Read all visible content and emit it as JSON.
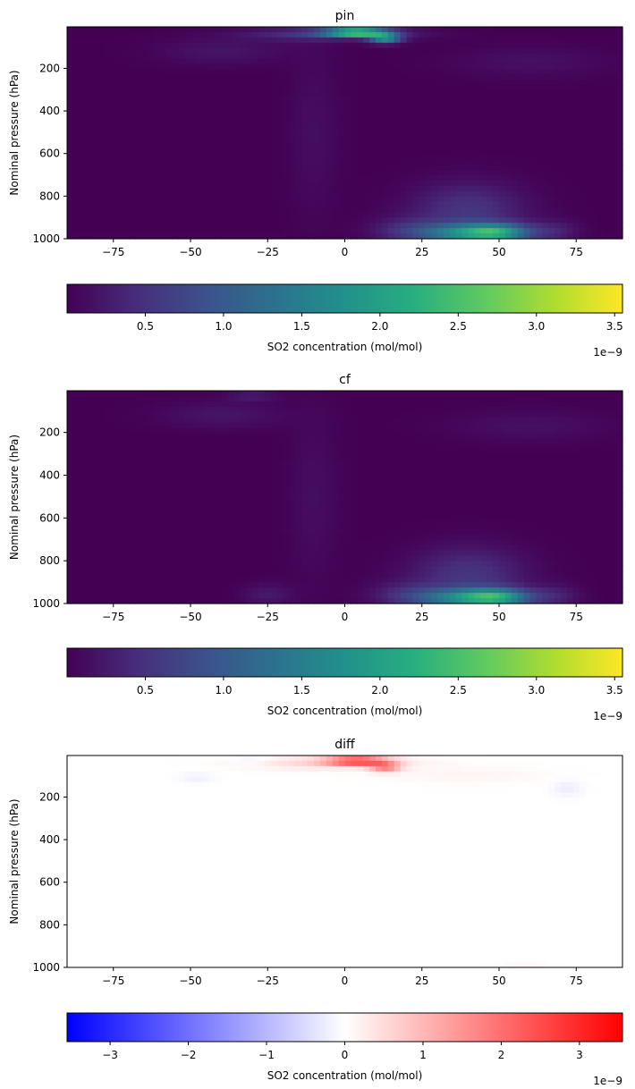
{
  "chart_data": [
    {
      "type": "heatmap",
      "title": "pin",
      "xlabel": "",
      "ylabel": "Nominal pressure (hPa)",
      "xlim": [
        -90,
        90
      ],
      "ylim": [
        1000,
        5
      ],
      "y_inverted": true,
      "xticks": [
        -75,
        -50,
        -25,
        0,
        25,
        50,
        75
      ],
      "yticks": [
        200,
        400,
        600,
        800,
        1000
      ],
      "colormap": "viridis",
      "colorbar": {
        "label": "SO2 concentration (mol/mol)",
        "range": [
          0.0,
          3.55
        ],
        "ticks": [
          "0.5",
          "1.0",
          "1.5",
          "2.0",
          "2.5",
          "3.0",
          "3.5"
        ],
        "tick_values": [
          0.5,
          1.0,
          1.5,
          2.0,
          2.5,
          3.0,
          3.5
        ],
        "offset_text": "1e−9"
      },
      "features": [
        {
          "lat": 4,
          "pressure": 30,
          "value": 3.5,
          "lat_width": 10,
          "p_width": 15
        },
        {
          "lat": 13,
          "pressure": 60,
          "value": 1.7,
          "lat_width": 5,
          "p_width": 22
        },
        {
          "lat": -5,
          "pressure": 40,
          "value": 0.6,
          "lat_width": 25,
          "p_width": 30
        },
        {
          "lat": 40,
          "pressure": 975,
          "value": 1.5,
          "lat_width": 16,
          "p_width": 45
        },
        {
          "lat": 50,
          "pressure": 970,
          "value": 1.2,
          "lat_width": 10,
          "p_width": 40
        },
        {
          "lat": 40,
          "pressure": 870,
          "value": 0.55,
          "lat_width": 18,
          "p_width": 130
        },
        {
          "lat": 20,
          "pressure": 960,
          "value": 0.35,
          "lat_width": 12,
          "p_width": 60
        },
        {
          "lat": 68,
          "pressure": 965,
          "value": 0.3,
          "lat_width": 8,
          "p_width": 50
        },
        {
          "lat": -40,
          "pressure": 120,
          "value": 0.2,
          "lat_width": 20,
          "p_width": 60
        },
        {
          "lat": 60,
          "pressure": 170,
          "value": 0.15,
          "lat_width": 25,
          "p_width": 70
        },
        {
          "lat": -10,
          "pressure": 500,
          "value": 0.12,
          "lat_width": 8,
          "p_width": 400
        }
      ]
    },
    {
      "type": "heatmap",
      "title": "cf",
      "xlabel": "",
      "ylabel": "Nominal pressure (hPa)",
      "xlim": [
        -90,
        90
      ],
      "ylim": [
        1000,
        5
      ],
      "y_inverted": true,
      "xticks": [
        -75,
        -50,
        -25,
        0,
        25,
        50,
        75
      ],
      "yticks": [
        200,
        400,
        600,
        800,
        1000
      ],
      "colormap": "viridis",
      "colorbar": {
        "label": "SO2 concentration (mol/mol)",
        "range": [
          0.0,
          3.55
        ],
        "ticks": [
          "0.5",
          "1.0",
          "1.5",
          "2.0",
          "2.5",
          "3.0",
          "3.5"
        ],
        "tick_values": [
          0.5,
          1.0,
          1.5,
          2.0,
          2.5,
          3.0,
          3.5
        ],
        "offset_text": "1e−9"
      },
      "features": [
        {
          "lat": 40,
          "pressure": 975,
          "value": 1.5,
          "lat_width": 16,
          "p_width": 45
        },
        {
          "lat": 50,
          "pressure": 970,
          "value": 1.2,
          "lat_width": 10,
          "p_width": 40
        },
        {
          "lat": 40,
          "pressure": 870,
          "value": 0.55,
          "lat_width": 18,
          "p_width": 130
        },
        {
          "lat": 20,
          "pressure": 960,
          "value": 0.35,
          "lat_width": 12,
          "p_width": 60
        },
        {
          "lat": 68,
          "pressure": 965,
          "value": 0.3,
          "lat_width": 8,
          "p_width": 50
        },
        {
          "lat": -25,
          "pressure": 960,
          "value": 0.25,
          "lat_width": 8,
          "p_width": 50
        },
        {
          "lat": -30,
          "pressure": 30,
          "value": 0.25,
          "lat_width": 8,
          "p_width": 25
        },
        {
          "lat": -40,
          "pressure": 120,
          "value": 0.2,
          "lat_width": 20,
          "p_width": 60
        },
        {
          "lat": 60,
          "pressure": 170,
          "value": 0.15,
          "lat_width": 25,
          "p_width": 70
        },
        {
          "lat": -10,
          "pressure": 500,
          "value": 0.12,
          "lat_width": 8,
          "p_width": 400
        }
      ]
    },
    {
      "type": "heatmap",
      "title": "diff",
      "xlabel": "",
      "ylabel": "Nominal pressure (hPa)",
      "xlim": [
        -90,
        90
      ],
      "ylim": [
        1000,
        5
      ],
      "y_inverted": true,
      "xticks": [
        -75,
        -50,
        -25,
        0,
        25,
        50,
        75
      ],
      "yticks": [
        200,
        400,
        600,
        800,
        1000
      ],
      "colormap": "bwr",
      "colorbar": {
        "label": "SO2 concentration (mol/mol)",
        "range": [
          -3.55,
          3.55
        ],
        "ticks": [
          "−3",
          "−2",
          "−1",
          "0",
          "1",
          "2",
          "3"
        ],
        "tick_values": [
          -3,
          -2,
          -1,
          0,
          1,
          2,
          3
        ],
        "offset_text": "1e−9"
      },
      "features": [
        {
          "lat": 4,
          "pressure": 30,
          "value": 3.5,
          "lat_width": 10,
          "p_width": 15
        },
        {
          "lat": 13,
          "pressure": 60,
          "value": 1.7,
          "lat_width": 5,
          "p_width": 22
        },
        {
          "lat": -5,
          "pressure": 40,
          "value": 0.6,
          "lat_width": 25,
          "p_width": 30
        },
        {
          "lat": 40,
          "pressure": 100,
          "value": 0.15,
          "lat_width": 25,
          "p_width": 40
        },
        {
          "lat": -30,
          "pressure": 25,
          "value": -0.25,
          "lat_width": 6,
          "p_width": 20
        },
        {
          "lat": -48,
          "pressure": 110,
          "value": -0.2,
          "lat_width": 6,
          "p_width": 25
        },
        {
          "lat": 72,
          "pressure": 160,
          "value": -0.25,
          "lat_width": 5,
          "p_width": 40
        },
        {
          "lat": 58,
          "pressure": 990,
          "value": 0.1,
          "lat_width": 8,
          "p_width": 20
        }
      ]
    }
  ]
}
